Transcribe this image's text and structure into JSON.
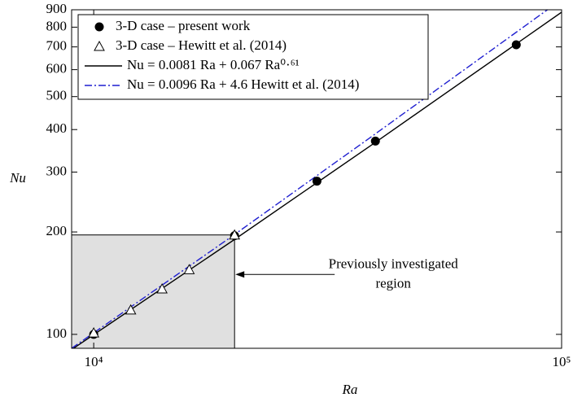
{
  "chart_data": {
    "type": "scatter-line",
    "x_label": "Ra",
    "y_label": "Nu",
    "xlim": [
      8970,
      100000
    ],
    "ylim": [
      91,
      900
    ],
    "xlog": true,
    "ylog": true,
    "xticks": [
      {
        "value": 10000,
        "label": "10⁴"
      },
      {
        "value": 100000,
        "label": "10⁵"
      }
    ],
    "yticks": [
      100,
      200,
      300,
      400,
      500,
      600,
      700,
      800,
      900
    ],
    "series": [
      {
        "name": "3-D case – present work",
        "kind": "filled-circle",
        "color": "#000000",
        "x": [
          10000,
          20000,
          30000,
          40000,
          80000
        ],
        "values": [
          100,
          195,
          282,
          370,
          710
        ]
      },
      {
        "name": "3-D case – Hewitt et al. (2014)",
        "kind": "open-triangle",
        "color": "#000000",
        "x": [
          10000,
          12000,
          14000,
          16000,
          20000
        ],
        "values": [
          101,
          118,
          136,
          155,
          196
        ]
      },
      {
        "name": "Nu = 0.0081 Ra + 0.067 Ra⁰·⁶¹",
        "kind": "solid-line",
        "color": "#000000",
        "x": [
          8970,
          20000,
          40000,
          100000
        ],
        "values": [
          90.2,
          190.1,
          366.9,
          885.2
        ]
      },
      {
        "name": "Nu = 0.0096 Ra + 4.6 Hewitt et al. (2014)",
        "kind": "dashdot-line",
        "color": "#1f1fd0",
        "x": [
          8970,
          20000,
          40000,
          100000
        ],
        "values": [
          91,
          196.6,
          388.6,
          964.6
        ]
      }
    ],
    "shaded_region": {
      "xmax": 20000,
      "ymax": 196
    },
    "annotation": {
      "text": "Previously investigated region",
      "x": 20000,
      "y": 150
    }
  }
}
